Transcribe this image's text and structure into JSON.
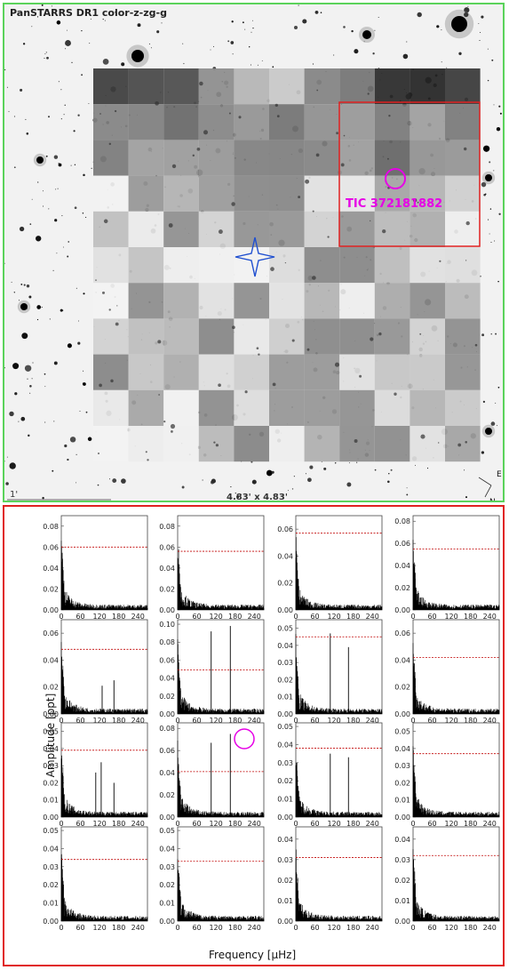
{
  "sky": {
    "title": "PanSTARRS DR1 color-z-zg-g",
    "scale_label": "1'",
    "fov_label": "4.83' x 4.83'",
    "compass_e": "E",
    "compass_n": "N",
    "target_label": "TIC 372181882",
    "colors": {
      "border": "#5bd35b",
      "aperture": "#e02020",
      "target": "#e600e6",
      "marker": "#2050d0"
    }
  },
  "periodogram": {
    "ylabel": "Amplitude [ppt]",
    "xlabel": "Frequency [μHz]",
    "border_color": "#e02020",
    "xticks": [
      "0",
      "60",
      "120",
      "180",
      "240"
    ]
  },
  "chart_data": [
    {
      "type": "line",
      "row": 0,
      "col": 0,
      "yticks": [
        "0.00",
        "0.02",
        "0.04",
        "0.06",
        "0.08"
      ],
      "ylim": [
        0,
        0.09
      ],
      "threshold": 0.06,
      "peaks": []
    },
    {
      "type": "line",
      "row": 0,
      "col": 1,
      "yticks": [
        "0.00",
        "0.02",
        "0.04",
        "0.06",
        "0.08"
      ],
      "ylim": [
        0,
        0.09
      ],
      "threshold": 0.056,
      "peaks": []
    },
    {
      "type": "line",
      "row": 0,
      "col": 2,
      "yticks": [
        "0.00",
        "0.02",
        "0.04",
        "0.06"
      ],
      "ylim": [
        0,
        0.07
      ],
      "threshold": 0.057,
      "peaks": []
    },
    {
      "type": "line",
      "row": 0,
      "col": 3,
      "yticks": [
        "0.00",
        "0.02",
        "0.04",
        "0.06",
        "0.08"
      ],
      "ylim": [
        0,
        0.085
      ],
      "threshold": 0.055,
      "peaks": []
    },
    {
      "type": "line",
      "row": 1,
      "col": 0,
      "yticks": [
        "0.00",
        "0.02",
        "0.04",
        "0.06"
      ],
      "ylim": [
        0,
        0.07
      ],
      "threshold": 0.048,
      "peaks": [
        [
          128,
          0.021
        ],
        [
          165,
          0.025
        ]
      ]
    },
    {
      "type": "line",
      "row": 1,
      "col": 1,
      "yticks": [
        "0.00",
        "0.02",
        "0.04",
        "0.06",
        "0.08",
        "0.10"
      ],
      "ylim": [
        0,
        0.105
      ],
      "threshold": 0.049,
      "peaks": [
        [
          105,
          0.092
        ],
        [
          165,
          0.098
        ]
      ]
    },
    {
      "type": "line",
      "row": 1,
      "col": 2,
      "yticks": [
        "0.00",
        "0.01",
        "0.02",
        "0.03",
        "0.04",
        "0.05"
      ],
      "ylim": [
        0,
        0.055
      ],
      "threshold": 0.045,
      "peaks": [
        [
          108,
          0.047
        ],
        [
          165,
          0.039
        ]
      ]
    },
    {
      "type": "line",
      "row": 1,
      "col": 3,
      "yticks": [
        "0.00",
        "0.02",
        "0.04",
        "0.06"
      ],
      "ylim": [
        0,
        0.07
      ],
      "threshold": 0.042,
      "peaks": []
    },
    {
      "type": "line",
      "row": 2,
      "col": 0,
      "yticks": [
        "0.00",
        "0.01",
        "0.02",
        "0.03",
        "0.04",
        "0.05"
      ],
      "ylim": [
        0,
        0.055
      ],
      "threshold": 0.039,
      "peaks": [
        [
          108,
          0.026
        ],
        [
          125,
          0.032
        ],
        [
          165,
          0.02
        ]
      ]
    },
    {
      "type": "line",
      "row": 2,
      "col": 1,
      "yticks": [
        "0.00",
        "0.02",
        "0.04",
        "0.06",
        "0.08"
      ],
      "ylim": [
        0,
        0.085
      ],
      "threshold": 0.041,
      "peaks": [
        [
          105,
          0.067
        ],
        [
          165,
          0.075
        ]
      ],
      "circle": true
    },
    {
      "type": "line",
      "row": 2,
      "col": 2,
      "yticks": [
        "0.00",
        "0.01",
        "0.02",
        "0.03",
        "0.04",
        "0.05"
      ],
      "ylim": [
        0,
        0.052
      ],
      "threshold": 0.038,
      "peaks": [
        [
          108,
          0.035
        ],
        [
          165,
          0.033
        ]
      ]
    },
    {
      "type": "line",
      "row": 2,
      "col": 3,
      "yticks": [
        "0.00",
        "0.01",
        "0.02",
        "0.03",
        "0.04",
        "0.05"
      ],
      "ylim": [
        0,
        0.055
      ],
      "threshold": 0.037,
      "peaks": []
    },
    {
      "type": "line",
      "row": 3,
      "col": 0,
      "yticks": [
        "0.00",
        "0.01",
        "0.02",
        "0.03",
        "0.04",
        "0.05"
      ],
      "ylim": [
        0,
        0.052
      ],
      "threshold": 0.034,
      "peaks": []
    },
    {
      "type": "line",
      "row": 3,
      "col": 1,
      "yticks": [
        "0.00",
        "0.01",
        "0.02",
        "0.03",
        "0.04",
        "0.05"
      ],
      "ylim": [
        0,
        0.052
      ],
      "threshold": 0.033,
      "peaks": []
    },
    {
      "type": "line",
      "row": 3,
      "col": 2,
      "yticks": [
        "0.00",
        "0.01",
        "0.02",
        "0.03",
        "0.04"
      ],
      "ylim": [
        0,
        0.046
      ],
      "threshold": 0.031,
      "peaks": []
    },
    {
      "type": "line",
      "row": 3,
      "col": 3,
      "yticks": [
        "0.00",
        "0.01",
        "0.02",
        "0.03",
        "0.04"
      ],
      "ylim": [
        0,
        0.046
      ],
      "threshold": 0.032,
      "peaks": []
    }
  ]
}
